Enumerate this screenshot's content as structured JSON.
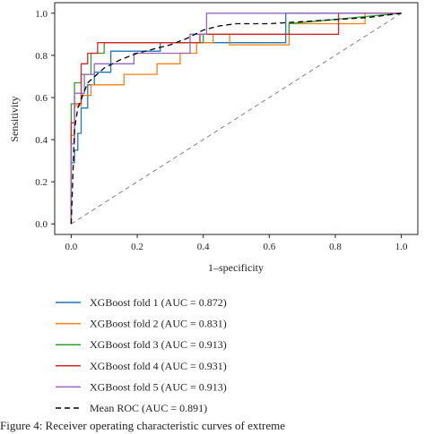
{
  "chart_data": {
    "type": "line",
    "title": "",
    "xlabel": "1–specificity",
    "ylabel": "Sensitivity",
    "xlim": [
      -0.05,
      1.05
    ],
    "ylim": [
      -0.05,
      1.05
    ],
    "xticks": [
      "0.0",
      "0.2",
      "0.4",
      "0.6",
      "0.8",
      "1.0"
    ],
    "yticks": [
      "0.0",
      "0.2",
      "0.4",
      "0.6",
      "0.8",
      "1.0"
    ],
    "grid": false,
    "legend_position": "below",
    "series": [
      {
        "name": "XGBoost fold 1 (AUC = 0.872)",
        "color": "#1f77b4",
        "style": "solid",
        "x": [
          0,
          0,
          0.01,
          0.01,
          0.02,
          0.02,
          0.03,
          0.03,
          0.05,
          0.05,
          0.07,
          0.07,
          0.12,
          0.12,
          0.27,
          0.27,
          0.65,
          0.65,
          1.0
        ],
        "y": [
          0,
          0.29,
          0.29,
          0.35,
          0.35,
          0.43,
          0.43,
          0.55,
          0.55,
          0.66,
          0.66,
          0.72,
          0.72,
          0.82,
          0.82,
          0.86,
          0.86,
          1.0,
          1.0
        ]
      },
      {
        "name": "XGBoost fold 2 (AUC = 0.831)",
        "color": "#ff7f0e",
        "style": "solid",
        "x": [
          0,
          0,
          0.01,
          0.01,
          0.03,
          0.03,
          0.06,
          0.06,
          0.16,
          0.16,
          0.26,
          0.26,
          0.33,
          0.33,
          0.38,
          0.38,
          0.43,
          0.43,
          0.48,
          0.48,
          0.66,
          0.66,
          0.89,
          0.89,
          1.0
        ],
        "y": [
          0,
          0.42,
          0.42,
          0.56,
          0.56,
          0.61,
          0.61,
          0.66,
          0.66,
          0.71,
          0.71,
          0.76,
          0.76,
          0.81,
          0.81,
          0.86,
          0.86,
          0.9,
          0.9,
          0.85,
          0.85,
          0.95,
          0.95,
          1.0,
          1.0
        ]
      },
      {
        "name": "XGBoost fold 3 (AUC = 0.913)",
        "color": "#2ca02c",
        "style": "solid",
        "x": [
          0,
          0,
          0.01,
          0.01,
          0.03,
          0.03,
          0.06,
          0.06,
          0.1,
          0.1,
          0.4,
          0.4,
          0.66,
          0.66,
          1.0
        ],
        "y": [
          0,
          0.57,
          0.57,
          0.67,
          0.67,
          0.71,
          0.71,
          0.81,
          0.81,
          0.86,
          0.86,
          0.9,
          0.9,
          0.95,
          1.0
        ]
      },
      {
        "name": "XGBoost fold 4 (AUC = 0.931)",
        "color": "#d62728",
        "style": "solid",
        "x": [
          0,
          0,
          0.01,
          0.01,
          0.03,
          0.03,
          0.05,
          0.05,
          0.08,
          0.08,
          0.39,
          0.39,
          0.81,
          0.81,
          1.0
        ],
        "y": [
          0,
          0.48,
          0.48,
          0.57,
          0.57,
          0.76,
          0.76,
          0.81,
          0.81,
          0.86,
          0.86,
          0.9,
          0.9,
          1.0,
          1.0
        ]
      },
      {
        "name": "XGBoost fold 5 (AUC = 0.913)",
        "color": "#9467bd",
        "style": "solid",
        "x": [
          0,
          0,
          0.01,
          0.01,
          0.04,
          0.04,
          0.07,
          0.07,
          0.19,
          0.19,
          0.36,
          0.36,
          0.41,
          0.41,
          1.0
        ],
        "y": [
          0,
          0.38,
          0.38,
          0.62,
          0.62,
          0.71,
          0.71,
          0.76,
          0.76,
          0.81,
          0.81,
          0.9,
          0.9,
          1.0,
          1.0
        ]
      },
      {
        "name": "Mean ROC (AUC = 0.891)",
        "color": "#000000",
        "style": "dashed",
        "x": [
          0,
          0.01,
          0.02,
          0.05,
          0.1,
          0.15,
          0.2,
          0.25,
          0.3,
          0.35,
          0.4,
          0.45,
          0.5,
          0.6,
          0.7,
          0.8,
          0.9,
          1.0
        ],
        "y": [
          0,
          0.45,
          0.55,
          0.67,
          0.74,
          0.78,
          0.81,
          0.83,
          0.85,
          0.88,
          0.92,
          0.94,
          0.95,
          0.95,
          0.96,
          0.97,
          0.98,
          1.0
        ]
      }
    ],
    "reference_line": {
      "x": [
        0,
        1
      ],
      "y": [
        0,
        1
      ],
      "color": "#808080",
      "style": "dashed"
    }
  },
  "caption": "Figure 4: Receiver operating characteristic curves of extreme"
}
